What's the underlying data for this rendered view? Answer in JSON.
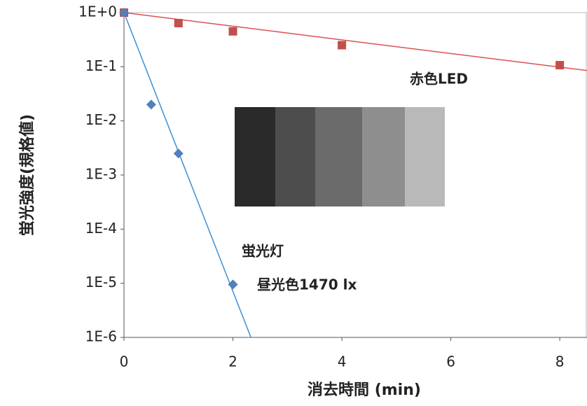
{
  "chart_data": {
    "type": "scatter",
    "y_label": "蛍光強度(規格値)",
    "x_label": "消去時間 (min)",
    "xlim": [
      0,
      8.5
    ],
    "xticks": [
      0,
      2,
      4,
      6,
      8
    ],
    "ylim": [
      1e-06,
      1
    ],
    "log_y": true,
    "yticks": [
      {
        "value": 1,
        "label": "1E+0"
      },
      {
        "value": 0.1,
        "label": "1E-1"
      },
      {
        "value": 0.01,
        "label": "1E-2"
      },
      {
        "value": 0.001,
        "label": "1E-3"
      },
      {
        "value": 0.0001,
        "label": "1E-4"
      },
      {
        "value": 1e-05,
        "label": "1E-5"
      },
      {
        "value": 1e-06,
        "label": "1E-6"
      }
    ],
    "series": [
      {
        "color": "#c0504d",
        "marker": "square",
        "x": [
          0,
          1,
          2,
          4,
          8
        ],
        "values": [
          1,
          0.64,
          0.45,
          0.25,
          0.107
        ]
      },
      {
        "color": "#4f81bd",
        "marker": "diamond",
        "x": [
          0,
          0.5,
          1,
          2
        ],
        "values": [
          1,
          0.02,
          0.0025,
          9.5e-06
        ]
      }
    ],
    "trendlines": [
      {
        "color": "#d9534f",
        "x": [
          0,
          8.5
        ],
        "values": [
          1,
          0.085
        ]
      },
      {
        "color": "#3e8ed0",
        "x": [
          0,
          2.33
        ],
        "values": [
          1,
          1e-06
        ]
      }
    ],
    "annotations": [
      "赤色LED",
      "蛍光灯",
      "昼光色1470 lx"
    ]
  }
}
